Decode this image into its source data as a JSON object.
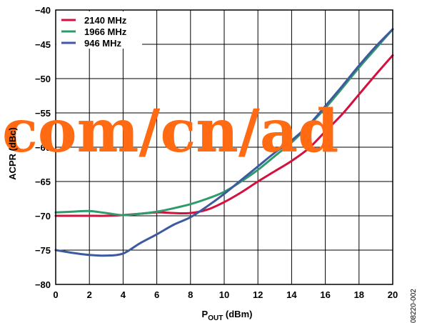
{
  "chart_data": {
    "type": "line",
    "xlabel": "P",
    "xlabel_sub": "OUT",
    "xlabel_unit": " (dBm)",
    "ylabel": "ACPR (dBc)",
    "xlim": [
      0,
      20
    ],
    "ylim": [
      -80,
      -40
    ],
    "x_ticks": [
      0,
      2,
      4,
      6,
      8,
      10,
      12,
      14,
      16,
      18,
      20
    ],
    "y_ticks": [
      -40,
      -45,
      -50,
      -55,
      -60,
      -65,
      -70,
      -75,
      -80
    ],
    "x_tick_labels": [
      "0",
      "2",
      "4",
      "6",
      "8",
      "10",
      "12",
      "14",
      "16",
      "18",
      "20"
    ],
    "y_tick_labels": [
      "−40",
      "−45",
      "−50",
      "−55",
      "−60",
      "−65",
      "−70",
      "−75",
      "−80"
    ],
    "grid": true,
    "legend_position": "top-left",
    "series": [
      {
        "name": "2140 MHz",
        "color": "#d4113e",
        "x": [
          0,
          1,
          2,
          3,
          4,
          5,
          6,
          7,
          8,
          9,
          10,
          11,
          12,
          13,
          14,
          15,
          16,
          17,
          18,
          19,
          20
        ],
        "y": [
          -70.0,
          -70.0,
          -70.0,
          -70.0,
          -69.9,
          -69.7,
          -69.5,
          -69.6,
          -69.6,
          -69.1,
          -68.0,
          -66.6,
          -65.0,
          -63.5,
          -62.0,
          -60.2,
          -57.7,
          -55.2,
          -52.3,
          -49.4,
          -46.6
        ]
      },
      {
        "name": "1966 MHz",
        "color": "#2e9b6a",
        "x": [
          0,
          1,
          2,
          3,
          4,
          5,
          6,
          7,
          8,
          9,
          10,
          11,
          12,
          13,
          14,
          15,
          16,
          17,
          18,
          19,
          20
        ],
        "y": [
          -69.5,
          -69.4,
          -69.3,
          -69.6,
          -69.9,
          -69.7,
          -69.4,
          -68.9,
          -68.3,
          -67.5,
          -66.5,
          -65.0,
          -63.3,
          -61.3,
          -59.3,
          -56.9,
          -54.3,
          -51.4,
          -48.4,
          -45.6,
          -42.8
        ]
      },
      {
        "name": "946 MHz",
        "color": "#3e5a9e",
        "x": [
          0,
          1,
          2,
          3,
          4,
          5,
          6,
          7,
          8,
          9,
          10,
          11,
          12,
          13,
          14,
          15,
          16,
          17,
          18,
          19,
          20
        ],
        "y": [
          -75.0,
          -75.4,
          -75.7,
          -75.8,
          -75.5,
          -74.0,
          -72.7,
          -71.3,
          -70.2,
          -68.6,
          -66.8,
          -64.8,
          -62.8,
          -60.8,
          -59.0,
          -56.8,
          -54.0,
          -51.1,
          -48.1,
          -45.3,
          -42.8
        ]
      }
    ]
  },
  "watermark_text": "com/cn/ad",
  "figure_id": "08220-002"
}
